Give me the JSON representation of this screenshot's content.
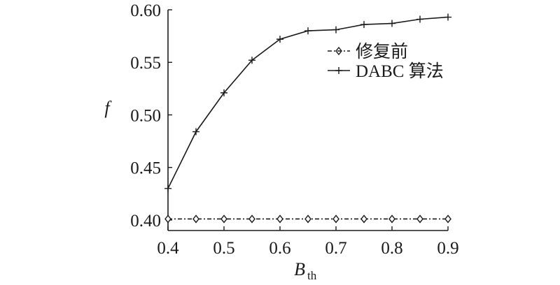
{
  "chart_data": {
    "type": "line",
    "xlabel": "B",
    "xlabel_sub": "th",
    "ylabel": "f",
    "xlim": [
      0.4,
      0.9
    ],
    "ylim": [
      0.39,
      0.6
    ],
    "x_ticks": [
      "0.4",
      "0.5",
      "0.6",
      "0.7",
      "0.8",
      "0.9"
    ],
    "y_ticks": [
      "0.40",
      "0.45",
      "0.50",
      "0.55",
      "0.60"
    ],
    "grid": false,
    "legend_position": "top-right",
    "x": [
      0.4,
      0.45,
      0.5,
      0.55,
      0.6,
      0.65,
      0.7,
      0.75,
      0.8,
      0.85,
      0.9
    ],
    "series": [
      {
        "name": "修复前",
        "style": "dash-dot",
        "marker": "diamond",
        "color": "#1a1a1a",
        "values": [
          0.401,
          0.401,
          0.401,
          0.401,
          0.401,
          0.401,
          0.401,
          0.401,
          0.401,
          0.401,
          0.401
        ]
      },
      {
        "name": "DABC 算法",
        "style": "solid",
        "marker": "plus",
        "color": "#1a1a1a",
        "values": [
          0.43,
          0.484,
          0.521,
          0.552,
          0.572,
          0.58,
          0.581,
          0.586,
          0.587,
          0.591,
          0.593
        ]
      }
    ]
  }
}
